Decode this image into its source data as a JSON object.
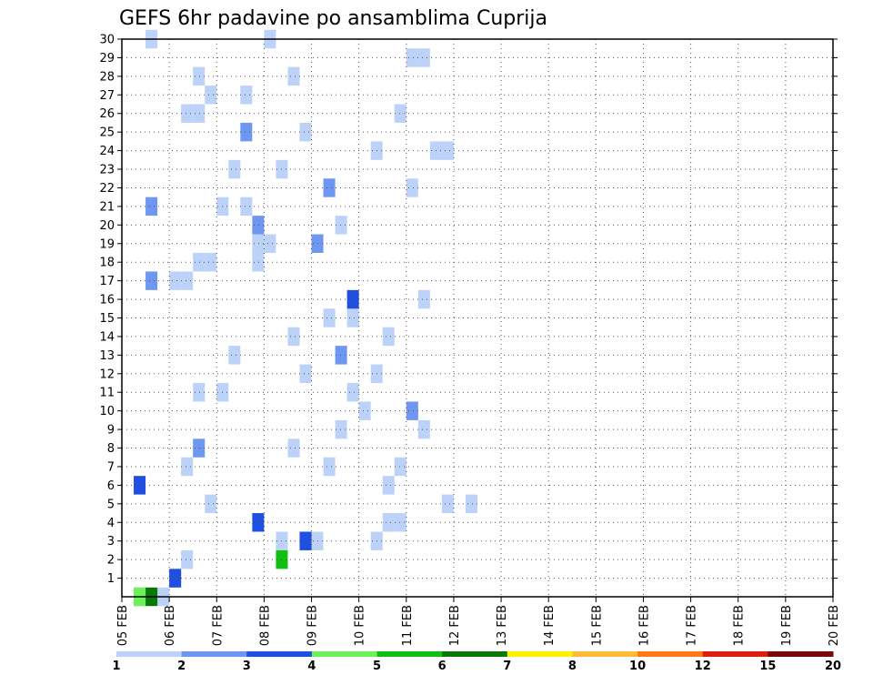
{
  "chart_data": {
    "type": "heatmap",
    "title": "GEFS 6hr padavine po ansamblima Cuprija",
    "xlabel": "",
    "ylabel": "",
    "x_tick_labels": [
      "05 FEB",
      "06 FEB",
      "07 FEB",
      "08 FEB",
      "09 FEB",
      "10 FEB",
      "11 FEB",
      "12 FEB",
      "13 FEB",
      "14 FEB",
      "15 FEB",
      "16 FEB",
      "17 FEB",
      "18 FEB",
      "19 FEB",
      "20 FEB"
    ],
    "y_tick_labels": [
      "1",
      "2",
      "3",
      "4",
      "5",
      "6",
      "7",
      "8",
      "9",
      "10",
      "11",
      "12",
      "13",
      "14",
      "15",
      "16",
      "17",
      "18",
      "19",
      "20",
      "21",
      "22",
      "23",
      "24",
      "25",
      "26",
      "27",
      "28",
      "29",
      "30"
    ],
    "xlim_days": [
      0,
      15
    ],
    "ylim_members": [
      0,
      30
    ],
    "time_step_hours": 6,
    "grid": true,
    "legend": {
      "placement": "bottom",
      "bounds": [
        "1",
        "2",
        "3",
        "4",
        "5",
        "6",
        "7",
        "8",
        "10",
        "12",
        "15",
        "20"
      ],
      "colors": [
        "#bcd2f8",
        "#6e97f2",
        "#1f4fe0",
        "#6ef05a",
        "#10c010",
        "#087808",
        "#fff200",
        "#ffba3a",
        "#ff7a16",
        "#e01e10",
        "#7a0808"
      ]
    },
    "cells": [
      [
        0,
        1,
        0
      ],
      [
        0,
        3,
        0
      ],
      [
        1,
        4,
        0
      ],
      [
        2,
        5,
        0
      ],
      [
        3,
        13,
        0
      ],
      [
        3,
        15,
        0
      ],
      [
        3,
        16,
        0
      ],
      [
        4,
        22,
        0
      ],
      [
        4,
        23,
        0
      ],
      [
        5,
        7,
        0
      ],
      [
        5,
        27,
        0
      ],
      [
        6,
        22,
        0
      ],
      [
        7,
        17,
        0
      ],
      [
        7,
        23,
        0
      ],
      [
        8,
        14,
        0
      ],
      [
        9,
        18,
        0
      ],
      [
        10,
        20,
        0
      ],
      [
        11,
        6,
        0
      ],
      [
        11,
        8,
        0
      ],
      [
        12,
        15,
        0
      ],
      [
        13,
        9,
        0
      ],
      [
        14,
        14,
        0
      ],
      [
        15,
        19,
        0
      ],
      [
        16,
        25,
        0
      ],
      [
        17,
        4,
        0
      ],
      [
        17,
        5,
        0
      ],
      [
        18,
        6,
        0
      ],
      [
        18,
        7,
        0
      ],
      [
        19,
        11,
        0
      ],
      [
        19,
        12,
        0
      ],
      [
        20,
        18,
        0
      ],
      [
        21,
        8,
        0
      ],
      [
        21,
        10,
        0
      ],
      [
        22,
        24,
        0
      ],
      [
        23,
        9,
        0
      ],
      [
        24,
        26,
        0
      ],
      [
        24,
        27,
        0
      ],
      [
        25,
        15,
        0
      ],
      [
        26,
        5,
        0
      ],
      [
        26,
        6,
        0
      ],
      [
        27,
        7,
        0
      ],
      [
        28,
        6,
        0
      ],
      [
        29,
        25,
        0
      ],
      [
        30,
        12,
        0
      ],
      [
        0,
        1,
        3
      ],
      [
        0,
        2,
        5
      ],
      [
        1,
        4,
        2
      ],
      [
        2,
        13,
        4
      ],
      [
        3,
        15,
        2
      ],
      [
        3,
        21,
        0
      ],
      [
        4,
        11,
        2
      ],
      [
        5,
        29,
        0
      ],
      [
        6,
        1,
        2
      ],
      [
        7,
        5,
        0
      ],
      [
        8,
        6,
        1
      ],
      [
        9,
        25,
        0
      ],
      [
        10,
        24,
        1
      ],
      [
        11,
        19,
        0
      ],
      [
        12,
        21,
        0
      ],
      [
        13,
        18,
        1
      ],
      [
        14,
        22,
        0
      ],
      [
        15,
        17,
        0
      ],
      [
        16,
        19,
        2
      ],
      [
        17,
        2,
        1
      ],
      [
        18,
        11,
        0
      ],
      [
        19,
        16,
        1
      ],
      [
        20,
        11,
        1
      ],
      [
        21,
        2,
        1
      ],
      [
        22,
        17,
        1
      ],
      [
        23,
        13,
        0
      ],
      [
        24,
        21,
        0
      ],
      [
        25,
        10,
        1
      ],
      [
        26,
        23,
        0
      ],
      [
        27,
        10,
        0
      ],
      [
        28,
        14,
        0
      ],
      [
        29,
        24,
        0
      ],
      [
        30,
        2,
        0
      ]
    ]
  }
}
